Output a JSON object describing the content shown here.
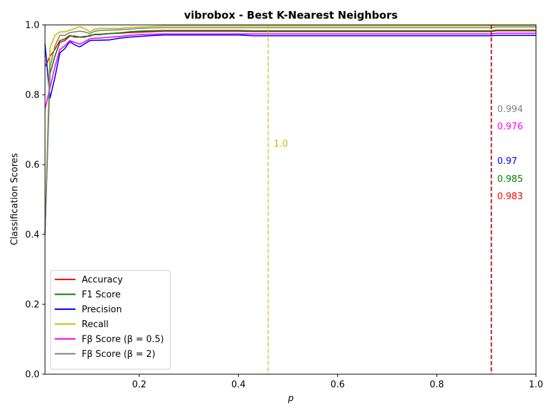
{
  "chart_data": {
    "type": "line",
    "title": "vibrobox - Best K-Nearest Neighbors",
    "xlabel": "p",
    "ylabel": "Classification Scores",
    "xlim": [
      0.01,
      1.0
    ],
    "ylim": [
      0.0,
      1.0
    ],
    "xticks": [
      0.2,
      0.4,
      0.6,
      0.8,
      1.0
    ],
    "xtick_labels": [
      "0.2",
      "0.4",
      "0.6",
      "0.8",
      "1.0"
    ],
    "yticks": [
      0.0,
      0.2,
      0.4,
      0.6,
      0.8,
      1.0
    ],
    "ytick_labels": [
      "0.0",
      "0.2",
      "0.4",
      "0.6",
      "0.8",
      "1.0"
    ],
    "grid": false,
    "legend_position": "lower-left",
    "x": [
      0.01,
      0.02,
      0.03,
      0.04,
      0.05,
      0.06,
      0.07,
      0.08,
      0.09,
      0.1,
      0.11,
      0.12,
      0.14,
      0.16,
      0.18,
      0.2,
      0.22,
      0.25,
      0.3,
      0.35,
      0.4,
      0.43,
      0.46,
      0.5,
      0.6,
      0.7,
      0.8,
      0.91,
      0.92,
      1.0
    ],
    "series": [
      {
        "name": "Accuracy",
        "color": "#ff0000",
        "values": [
          0.88,
          0.91,
          0.93,
          0.955,
          0.96,
          0.97,
          0.965,
          0.965,
          0.967,
          0.968,
          0.973,
          0.973,
          0.975,
          0.976,
          0.978,
          0.979,
          0.98,
          0.982,
          0.982,
          0.982,
          0.982,
          0.981,
          0.981,
          0.981,
          0.981,
          0.981,
          0.981,
          0.981,
          0.983,
          0.983
        ]
      },
      {
        "name": "F1 Score",
        "color": "#008000",
        "values": [
          0.4,
          0.86,
          0.91,
          0.95,
          0.955,
          0.968,
          0.968,
          0.965,
          0.965,
          0.97,
          0.972,
          0.972,
          0.975,
          0.977,
          0.98,
          0.982,
          0.983,
          0.984,
          0.984,
          0.984,
          0.984,
          0.983,
          0.983,
          0.983,
          0.983,
          0.983,
          0.983,
          0.983,
          0.985,
          0.985
        ]
      },
      {
        "name": "Precision",
        "color": "#0000ff",
        "values": [
          0.945,
          0.79,
          0.85,
          0.92,
          0.932,
          0.952,
          0.943,
          0.937,
          0.946,
          0.955,
          0.956,
          0.956,
          0.957,
          0.962,
          0.965,
          0.967,
          0.969,
          0.971,
          0.971,
          0.971,
          0.971,
          0.969,
          0.969,
          0.969,
          0.969,
          0.969,
          0.969,
          0.969,
          0.97,
          0.97
        ]
      },
      {
        "name": "Recall",
        "color": "#bfbf00",
        "values": [
          0.4,
          0.935,
          0.97,
          0.98,
          0.98,
          0.985,
          0.99,
          0.995,
          0.99,
          0.98,
          0.988,
          0.99,
          0.99,
          0.99,
          0.993,
          0.994,
          0.995,
          0.997,
          0.997,
          0.997,
          0.997,
          0.997,
          0.997,
          0.997,
          0.997,
          0.997,
          0.997,
          0.997,
          0.998,
          0.998
        ]
      },
      {
        "name": "Fβ Score (β = 0.5)",
        "color": "#ff00ff",
        "values": [
          0.76,
          0.82,
          0.88,
          0.93,
          0.94,
          0.955,
          0.95,
          0.945,
          0.952,
          0.96,
          0.962,
          0.962,
          0.965,
          0.967,
          0.97,
          0.972,
          0.973,
          0.974,
          0.974,
          0.974,
          0.974,
          0.974,
          0.974,
          0.974,
          0.974,
          0.974,
          0.974,
          0.974,
          0.976,
          0.976
        ]
      },
      {
        "name": "Fβ Score (β = 2)",
        "color": "#808080",
        "values": [
          0.4,
          0.88,
          0.94,
          0.97,
          0.97,
          0.978,
          0.98,
          0.982,
          0.98,
          0.975,
          0.982,
          0.984,
          0.985,
          0.986,
          0.988,
          0.99,
          0.991,
          0.992,
          0.992,
          0.992,
          0.992,
          0.992,
          0.992,
          0.992,
          0.992,
          0.992,
          0.992,
          0.992,
          0.994,
          0.994
        ]
      }
    ],
    "vlines": [
      {
        "x": 0.46,
        "color": "#bfbf00",
        "label": "1.0"
      },
      {
        "x": 0.91,
        "color": "#808080",
        "label": ""
      },
      {
        "x": 0.91,
        "color": "#ff00ff",
        "label": ""
      },
      {
        "x": 0.91,
        "color": "#0000ff",
        "label": ""
      },
      {
        "x": 0.91,
        "color": "#008000",
        "label": ""
      },
      {
        "x": 0.91,
        "color": "#ff0000",
        "label": ""
      }
    ],
    "annotations": [
      {
        "text": "0.994",
        "color": "#808080"
      },
      {
        "text": "0.976",
        "color": "#ff00ff"
      },
      {
        "text": "0.97",
        "color": "#0000ff"
      },
      {
        "text": "0.985",
        "color": "#008000"
      },
      {
        "text": "0.983",
        "color": "#ff0000"
      }
    ]
  }
}
